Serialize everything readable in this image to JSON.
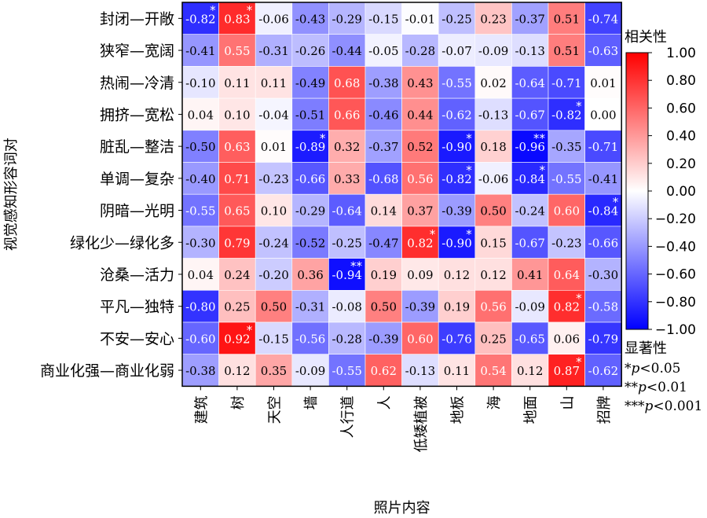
{
  "chart_data": {
    "type": "heatmap",
    "title": "",
    "xlabel": "照片内容",
    "ylabel": "视觉感知形容词对",
    "columns": [
      "建筑",
      "树",
      "天空",
      "墙",
      "人行道",
      "人",
      "低矮植被",
      "地板",
      "海",
      "地面",
      "山",
      "招牌"
    ],
    "rows": [
      "封闭—开敞",
      "狭窄—宽阔",
      "热闹—冷清",
      "拥挤—宽松",
      "脏乱—整洁",
      "单调—复杂",
      "阴暗—光明",
      "绿化少—绿化多",
      "沧桑—活力",
      "平凡—独特",
      "不安—安心",
      "商业化强—商业化弱"
    ],
    "values": [
      [
        -0.82,
        0.83,
        -0.06,
        -0.43,
        -0.29,
        -0.15,
        -0.01,
        -0.25,
        0.23,
        -0.37,
        0.51,
        -0.74
      ],
      [
        -0.41,
        0.55,
        -0.31,
        -0.26,
        -0.44,
        -0.05,
        -0.28,
        -0.07,
        -0.09,
        -0.13,
        0.51,
        -0.63
      ],
      [
        -0.1,
        0.11,
        0.11,
        -0.49,
        0.68,
        -0.38,
        0.43,
        -0.55,
        0.02,
        -0.64,
        -0.71,
        0.01
      ],
      [
        0.04,
        0.1,
        -0.04,
        -0.51,
        0.66,
        -0.46,
        0.44,
        -0.62,
        -0.13,
        -0.67,
        -0.82,
        0.0
      ],
      [
        -0.5,
        0.63,
        0.01,
        -0.89,
        0.32,
        -0.37,
        0.52,
        -0.9,
        0.18,
        -0.96,
        -0.35,
        -0.71
      ],
      [
        -0.4,
        0.71,
        -0.23,
        -0.66,
        0.33,
        -0.68,
        0.56,
        -0.82,
        -0.06,
        -0.84,
        -0.55,
        -0.41
      ],
      [
        -0.55,
        0.65,
        0.1,
        -0.29,
        -0.64,
        0.14,
        0.37,
        -0.39,
        0.5,
        -0.24,
        0.6,
        -0.84
      ],
      [
        -0.3,
        0.79,
        -0.24,
        -0.52,
        -0.25,
        -0.47,
        0.82,
        -0.9,
        0.15,
        -0.67,
        -0.23,
        -0.66
      ],
      [
        0.04,
        0.24,
        -0.2,
        0.36,
        -0.94,
        0.19,
        0.09,
        0.12,
        0.12,
        0.41,
        0.64,
        -0.3
      ],
      [
        -0.8,
        0.25,
        0.5,
        -0.31,
        -0.08,
        0.5,
        -0.39,
        0.19,
        0.56,
        -0.09,
        0.82,
        -0.58
      ],
      [
        -0.6,
        0.92,
        -0.15,
        -0.56,
        -0.28,
        -0.39,
        0.6,
        -0.76,
        0.25,
        -0.65,
        0.06,
        -0.79
      ],
      [
        -0.38,
        0.12,
        0.35,
        -0.09,
        -0.55,
        0.62,
        -0.13,
        0.11,
        0.54,
        0.12,
        0.87,
        -0.62
      ]
    ],
    "value_labels": [
      [
        "-0.82",
        "0.83",
        "-0.06",
        "-0.43",
        "-0.29",
        "-0.15",
        "-0.01",
        "-0.25",
        "0.23",
        "-0.37",
        "0.51",
        "-0.74"
      ],
      [
        "-0.41",
        "0.55",
        "-0.31",
        "-0.26",
        "-0.44",
        "-0.05",
        "-0.28",
        "-0.07",
        "-0.09",
        "-0.13",
        "0.51",
        "-0.63"
      ],
      [
        "-0.10",
        "0.11",
        "0.11",
        "-0.49",
        "0.68",
        "-0.38",
        "0.43",
        "-0.55",
        "0.02",
        "-0.64",
        "-0.71",
        "0.01"
      ],
      [
        "0.04",
        "0.10",
        "-0.04",
        "-0.51",
        "0.66",
        "-0.46",
        "0.44",
        "-0.62",
        "-0.13",
        "-0.67",
        "-0.82",
        "0.00"
      ],
      [
        "-0.50",
        "0.63",
        "0.01",
        "-0.89",
        "0.32",
        "-0.37",
        "0.52",
        "-0.90",
        "0.18",
        "-0.96",
        "-0.35",
        "-0.71"
      ],
      [
        "-0.40",
        "0.71",
        "-0.23",
        "-0.66",
        "0.33",
        "-0.68",
        "0.56",
        "-0.82",
        "-0.06",
        "-0.84",
        "-0.55",
        "-0.41"
      ],
      [
        "-0.55",
        "0.65",
        "0.10",
        "-0.29",
        "-0.64",
        "0.14",
        "0.37",
        "-0.39",
        "0.50",
        "-0.24",
        "0.60",
        "-0.84"
      ],
      [
        "-0.30",
        "0.79",
        "-0.24",
        "-0.52",
        "-0.25",
        "-0.47",
        "0.82",
        "-0.90",
        "0.15",
        "-0.67",
        "-0.23",
        "-0.66"
      ],
      [
        "0.04",
        "0.24",
        "-0.20",
        "0.36",
        "-0.94",
        "0.19",
        "0.09",
        "0.12",
        "0.12",
        "0.41",
        "0.64",
        "-0.30"
      ],
      [
        "-0.80",
        "0.25",
        "0.50",
        "-0.31",
        "-0.08",
        "0.50",
        "-0.39",
        "0.19",
        "0.56",
        "-0.09",
        "0.82",
        "-0.58"
      ],
      [
        "-0.60",
        "0.92",
        "-0.15",
        "-0.56",
        "-0.28",
        "-0.39",
        "0.60",
        "-0.76",
        "0.25",
        "-0.65",
        "0.06",
        "-0.79"
      ],
      [
        "-0.38",
        "0.12",
        "0.35",
        "-0.09",
        "-0.55",
        "0.62",
        "-0.13",
        "0.11",
        "0.54",
        "0.12",
        "0.87",
        "-0.62"
      ]
    ],
    "significance": [
      [
        "*",
        "*",
        "",
        "",
        "",
        "",
        "",
        "",
        "",
        "",
        "",
        ""
      ],
      [
        "",
        "",
        "",
        "",
        "",
        "",
        "",
        "",
        "",
        "",
        "",
        ""
      ],
      [
        "",
        "",
        "",
        "",
        "",
        "",
        "",
        "",
        "",
        "",
        "",
        ""
      ],
      [
        "",
        "",
        "",
        "",
        "",
        "",
        "",
        "",
        "",
        "",
        "*",
        ""
      ],
      [
        "",
        "",
        "",
        "*",
        "",
        "",
        "",
        "*",
        "",
        "**",
        "",
        ""
      ],
      [
        "",
        "",
        "",
        "",
        "",
        "",
        "",
        "*",
        "",
        "*",
        "",
        ""
      ],
      [
        "",
        "",
        "",
        "",
        "",
        "",
        "",
        "",
        "",
        "",
        "",
        "*"
      ],
      [
        "",
        "",
        "",
        "",
        "",
        "",
        "*",
        "*",
        "",
        "",
        "",
        ""
      ],
      [
        "",
        "",
        "",
        "",
        "**",
        "",
        "",
        "",
        "",
        "",
        "",
        ""
      ],
      [
        "",
        "",
        "",
        "",
        "",
        "",
        "",
        "",
        "",
        "",
        "*",
        ""
      ],
      [
        "",
        "*",
        "",
        "",
        "",
        "",
        "",
        "",
        "",
        "",
        "",
        ""
      ],
      [
        "",
        "",
        "",
        "",
        "",
        "",
        "",
        "",
        "",
        "",
        "*",
        ""
      ]
    ],
    "color_scale": {
      "title": "相关性",
      "min": -1.0,
      "max": 1.0,
      "ticks": [
        "1.00",
        "0.80",
        "0.60",
        "0.40",
        "0.20",
        "0.00",
        "−0.20",
        "−0.40",
        "−0.60",
        "−0.80",
        "−1.00"
      ],
      "colors": {
        "negative": "#0000ff",
        "zero": "#ffffff",
        "positive": "#ff0000"
      }
    },
    "legend": {
      "title": "显著性",
      "entries": [
        {
          "stars": "*",
          "p": "p",
          "cond": "<0.05"
        },
        {
          "stars": "**",
          "p": "p",
          "cond": "<0.01"
        },
        {
          "stars": "***",
          "p": "p",
          "cond": "<0.001"
        }
      ]
    }
  }
}
